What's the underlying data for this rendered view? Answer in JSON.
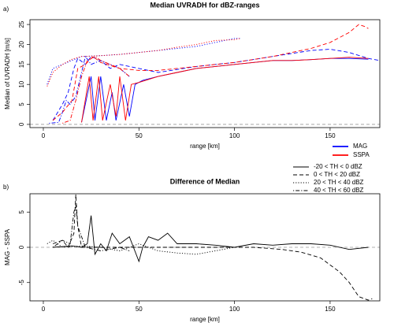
{
  "chart_data": [
    {
      "type": "line",
      "title": "Median UVRADH for dBZ-ranges",
      "panel": "a)",
      "xlabel": "range [km]",
      "ylabel": "Median of UVRADH [m/s]",
      "xlim": [
        -7,
        176
      ],
      "ylim": [
        -0.8,
        26.2
      ],
      "xticks": [
        0,
        50,
        100,
        150
      ],
      "yticks": [
        0,
        5,
        10,
        15,
        20,
        25
      ],
      "hline": 0,
      "legend": [
        {
          "name": "MAG",
          "color": "#0000ff"
        },
        {
          "name": "SSPA",
          "color": "#ff0000"
        }
      ],
      "series": [
        {
          "color": "#0000ff",
          "dash": "solid",
          "x": [
            20,
            25,
            27,
            30,
            33,
            36,
            38,
            42,
            45,
            48,
            52,
            60,
            70,
            80,
            90,
            100,
            110,
            120,
            130,
            140,
            150,
            160,
            170
          ],
          "values": [
            0.5,
            12,
            1,
            12,
            1,
            8,
            1,
            10,
            2,
            10,
            11,
            12,
            13,
            14,
            14.5,
            15,
            15.5,
            16,
            16,
            16.2,
            16.5,
            16.5,
            16.3
          ]
        },
        {
          "color": "#0000ff",
          "dash": "dashed",
          "x": [
            5,
            10,
            13,
            16,
            18,
            22,
            25,
            30,
            35,
            40,
            50,
            60,
            80,
            100,
            120,
            140,
            150,
            160,
            170,
            176
          ],
          "values": [
            1,
            5,
            8,
            14,
            16.5,
            15,
            17,
            16,
            14,
            15,
            14,
            13,
            14.5,
            15.5,
            17,
            18.5,
            18.8,
            18,
            16.5,
            16
          ]
        },
        {
          "color": "#0000ff",
          "dash": "dotted",
          "x": [
            2,
            5,
            10,
            15,
            20,
            30,
            40,
            50,
            60,
            70,
            80,
            90,
            100,
            103
          ],
          "values": [
            10,
            14,
            15,
            16,
            17,
            17.2,
            17.5,
            18,
            18.5,
            19,
            19.5,
            20.5,
            21.5,
            21.5
          ]
        },
        {
          "color": "#0000ff",
          "dash": "dotdash",
          "x": [
            3,
            8,
            10,
            12,
            14,
            17,
            20,
            22,
            25,
            30,
            35,
            40,
            45
          ],
          "values": [
            0.3,
            0.5,
            3,
            6,
            5,
            7,
            13,
            17,
            15,
            16,
            15,
            14,
            12
          ]
        },
        {
          "color": "#ff0000",
          "dash": "solid",
          "x": [
            20,
            24,
            26,
            29,
            31,
            35,
            38,
            40,
            43,
            46,
            50,
            60,
            70,
            80,
            90,
            100,
            110,
            120,
            130,
            140,
            150,
            160,
            170
          ],
          "values": [
            0.5,
            12,
            1,
            12,
            1,
            10,
            2,
            12,
            1,
            10,
            10.5,
            12,
            13,
            14,
            14.5,
            15,
            15.5,
            16,
            16,
            16.2,
            16.5,
            16.8,
            16.5
          ]
        },
        {
          "color": "#ff0000",
          "dash": "dashed",
          "x": [
            5,
            10,
            15,
            18,
            22,
            26,
            30,
            40,
            50,
            60,
            80,
            100,
            120,
            140,
            150,
            160,
            165,
            168,
            170
          ],
          "values": [
            1,
            3,
            6,
            14,
            15,
            17,
            15.5,
            14,
            13.5,
            13.5,
            14.5,
            15.5,
            17,
            19,
            20.5,
            23,
            25,
            24.5,
            24
          ]
        },
        {
          "color": "#ff0000",
          "dash": "dotted",
          "x": [
            2,
            5,
            10,
            15,
            20,
            30,
            40,
            50,
            60,
            70,
            80,
            90,
            100,
            103
          ],
          "values": [
            9.5,
            13,
            15,
            16.3,
            17,
            17.2,
            17.5,
            18,
            18.5,
            19.3,
            20,
            21,
            21.2,
            21.5
          ]
        },
        {
          "color": "#ff0000",
          "dash": "dotdash",
          "x": [
            10,
            14,
            17,
            20,
            23,
            27,
            30,
            35,
            40,
            45
          ],
          "values": [
            0.3,
            1,
            6,
            12,
            16,
            17,
            16,
            15,
            14,
            12
          ]
        }
      ]
    },
    {
      "type": "line",
      "title": "Difference of Median",
      "panel": "b)",
      "xlabel": "range [km]",
      "ylabel": "MAG - SSPA",
      "xlim": [
        -7,
        176
      ],
      "ylim": [
        -7.6,
        7.6
      ],
      "xticks": [
        0,
        50,
        100,
        150
      ],
      "yticks": [
        -5,
        0,
        5
      ],
      "hline": 0,
      "legend": [
        {
          "name": "-20 < TH < 0 dBZ",
          "dash": "solid"
        },
        {
          "name": "0 < TH < 20 dBZ",
          "dash": "dashed"
        },
        {
          "name": "20 < TH < 40 dBZ",
          "dash": "dotted"
        },
        {
          "name": "40 < TH < 60 dBZ",
          "dash": "dotdash"
        }
      ],
      "series": [
        {
          "color": "#000000",
          "dash": "solid",
          "x": [
            5,
            15,
            20,
            23,
            25,
            27,
            30,
            33,
            36,
            40,
            45,
            50,
            52,
            55,
            60,
            65,
            70,
            80,
            90,
            100,
            110,
            120,
            130,
            140,
            150,
            160,
            170
          ],
          "values": [
            0,
            0.2,
            0,
            0.5,
            4.5,
            -1,
            0.5,
            -0.5,
            2,
            0.5,
            1.5,
            -2,
            0,
            1.5,
            1,
            2,
            0.5,
            0.5,
            0.3,
            0,
            0.5,
            0.3,
            0.5,
            0.5,
            0.3,
            -0.3,
            0
          ]
        },
        {
          "color": "#000000",
          "dash": "dashed",
          "x": [
            5,
            10,
            13,
            16,
            17,
            18,
            20,
            30,
            50,
            70,
            90,
            110,
            125,
            135,
            145,
            150,
            155,
            160,
            165,
            170,
            172
          ],
          "values": [
            0.5,
            1,
            0,
            2,
            7.5,
            3,
            0,
            0,
            0,
            0,
            0,
            0,
            -0.3,
            -0.7,
            -1.5,
            -2.5,
            -3.5,
            -5,
            -7,
            -7.5,
            -7.3
          ]
        },
        {
          "color": "#000000",
          "dash": "dotted",
          "x": [
            2,
            5,
            10,
            20,
            30,
            40,
            50,
            60,
            70,
            80,
            90,
            100
          ],
          "values": [
            0.5,
            1,
            0,
            0.2,
            0,
            -0.5,
            0.5,
            -0.5,
            -0.8,
            -1,
            -0.5,
            0
          ]
        },
        {
          "color": "#000000",
          "dash": "dotdash",
          "x": [
            5,
            10,
            14,
            16,
            17,
            18,
            22,
            30,
            40,
            45
          ],
          "values": [
            0,
            1,
            0.5,
            5,
            6,
            3,
            0,
            -0.5,
            0,
            -0.5
          ]
        }
      ]
    }
  ]
}
